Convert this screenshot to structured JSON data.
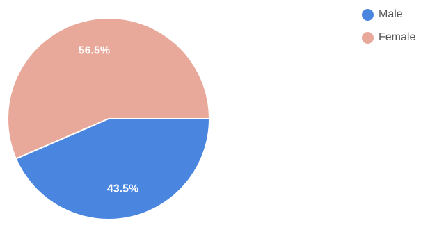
{
  "chart_data": {
    "type": "pie",
    "title": "",
    "categories": [
      "Male",
      "Female"
    ],
    "values": [
      43.5,
      56.5
    ],
    "labels": [
      "43.5%",
      "56.5%"
    ],
    "colors": [
      "#4a86e0",
      "#e8a99a"
    ],
    "legend": "top-right",
    "legend_items": [
      {
        "label": "Male",
        "color": "#4a86e0"
      },
      {
        "label": "Female",
        "color": "#e8a99a"
      }
    ]
  }
}
